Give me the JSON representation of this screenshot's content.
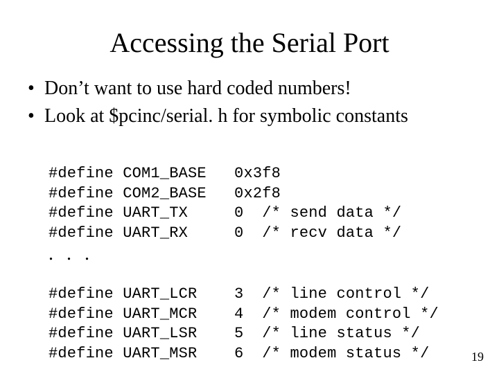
{
  "title": "Accessing the Serial Port",
  "bullets": [
    "Don’t want to use hard coded numbers!",
    "Look at $pcinc/serial. h for symbolic constants"
  ],
  "code": {
    "font_family": "Courier New",
    "font_size_pt": 16,
    "text_color": "#000000",
    "block1": [
      "#define COM1_BASE   0x3f8",
      "#define COM2_BASE   0x2f8",
      "#define UART_TX     0  /* send data */",
      "#define UART_RX     0  /* recv data */"
    ],
    "ellipsis": ". . .",
    "block2": [
      "#define UART_LCR    3  /* line control */",
      "#define UART_MCR    4  /* modem control */",
      "#define UART_LSR    5  /* line status */",
      "#define UART_MSR    6  /* modem status */"
    ]
  },
  "page_number": "19",
  "colors": {
    "background": "#ffffff",
    "text": "#000000"
  },
  "typography": {
    "title_font": "Times New Roman",
    "title_size_pt": 30,
    "body_font": "Times New Roman",
    "body_size_pt": 21,
    "code_font": "Courier New",
    "code_size_pt": 16
  }
}
